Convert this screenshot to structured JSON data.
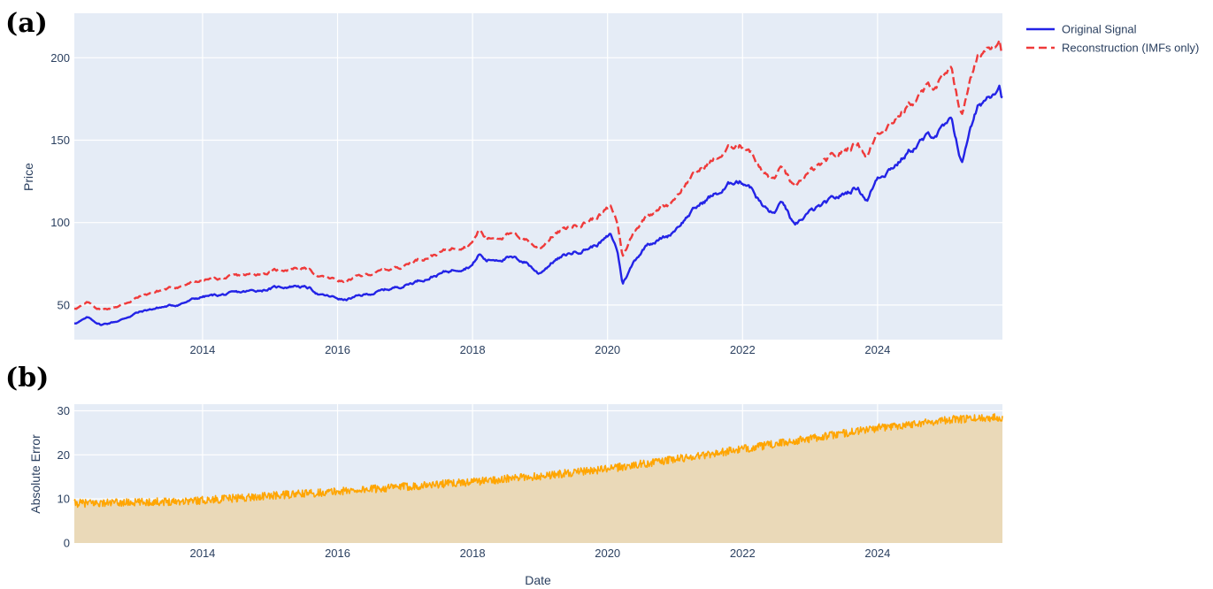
{
  "labels": {
    "a": "(a)",
    "b": "(b)"
  },
  "chart_data": [
    {
      "type": "line",
      "panel": "a",
      "title": "",
      "xlabel": "",
      "ylabel": "Price",
      "xlim": [
        2012.1,
        2025.85
      ],
      "ylim": [
        29,
        227
      ],
      "x_ticks": [
        2014,
        2016,
        2018,
        2020,
        2022,
        2024
      ],
      "y_ticks": [
        50,
        100,
        150,
        200
      ],
      "grid": true,
      "legend_position": "top-right",
      "series": [
        {
          "name": "Original Signal",
          "color": "#2323e6",
          "dash": "solid",
          "x": [
            2012.1,
            2012.3,
            2012.5,
            2012.8,
            2013.0,
            2013.3,
            2013.6,
            2014.0,
            2014.5,
            2015.0,
            2015.4,
            2015.6,
            2015.75,
            2016.0,
            2016.1,
            2016.3,
            2016.6,
            2016.9,
            2017.2,
            2017.6,
            2018.0,
            2018.1,
            2018.2,
            2018.5,
            2018.8,
            2018.98,
            2019.2,
            2019.5,
            2019.8,
            2020.05,
            2020.15,
            2020.22,
            2020.4,
            2020.6,
            2020.9,
            2021.2,
            2021.5,
            2021.7,
            2021.9,
            2022.1,
            2022.3,
            2022.45,
            2022.6,
            2022.78,
            2022.95,
            2023.2,
            2023.5,
            2023.7,
            2023.85,
            2024.0,
            2024.3,
            2024.6,
            2024.9,
            2025.1,
            2025.18,
            2025.25,
            2025.35,
            2025.5,
            2025.7,
            2025.8,
            2025.85
          ],
          "y": [
            39,
            42,
            38,
            41,
            45,
            48,
            50,
            55,
            57,
            60,
            62,
            60,
            56,
            54,
            53,
            55,
            58,
            61,
            65,
            70,
            75,
            81,
            77,
            79,
            76,
            69,
            77,
            82,
            86,
            92,
            82,
            63,
            77,
            88,
            92,
            105,
            115,
            119,
            126,
            124,
            110,
            105,
            112,
            96,
            105,
            110,
            117,
            122,
            114,
            128,
            137,
            148,
            155,
            160,
            148,
            135,
            155,
            170,
            180,
            186,
            178
          ],
          "source_table": true
        },
        {
          "name": "Reconstruction (IMFs only)",
          "color": "#ef3a3a",
          "dash": "dash",
          "x": [
            2012.1,
            2012.3,
            2012.5,
            2012.8,
            2013.0,
            2013.3,
            2013.6,
            2014.0,
            2014.5,
            2015.0,
            2015.4,
            2015.6,
            2015.75,
            2016.0,
            2016.1,
            2016.3,
            2016.6,
            2016.9,
            2017.2,
            2017.6,
            2018.0,
            2018.1,
            2018.2,
            2018.5,
            2018.8,
            2018.98,
            2019.2,
            2019.5,
            2019.8,
            2020.05,
            2020.15,
            2020.22,
            2020.4,
            2020.6,
            2020.9,
            2021.2,
            2021.5,
            2021.7,
            2021.9,
            2022.1,
            2022.3,
            2022.45,
            2022.6,
            2022.78,
            2022.95,
            2023.2,
            2023.5,
            2023.7,
            2023.85,
            2024.0,
            2024.3,
            2024.6,
            2024.9,
            2025.1,
            2025.18,
            2025.25,
            2025.35,
            2025.5,
            2025.7,
            2025.8,
            2025.85
          ],
          "y": [
            48,
            51,
            47,
            50,
            54,
            58,
            61,
            65,
            67,
            70,
            73,
            71,
            67,
            65,
            64,
            67,
            70,
            73,
            78,
            83,
            89,
            96,
            90,
            93,
            90,
            84,
            93,
            98,
            103,
            109,
            99,
            80,
            95,
            106,
            111,
            126,
            136,
            141,
            148,
            146,
            130,
            126,
            133,
            119,
            129,
            135,
            143,
            149,
            141,
            155,
            165,
            177,
            185,
            190,
            177,
            164,
            185,
            200,
            210,
            214,
            206
          ],
          "source_table": true
        }
      ]
    },
    {
      "type": "area",
      "panel": "b",
      "title": "",
      "xlabel": "Date",
      "ylabel": "Absolute Error",
      "xlim": [
        2012.1,
        2025.85
      ],
      "ylim": [
        0,
        31.5
      ],
      "x_ticks": [
        2014,
        2016,
        2018,
        2020,
        2022,
        2024
      ],
      "y_ticks": [
        0,
        10,
        20,
        30
      ],
      "grid": true,
      "series": [
        {
          "name": "",
          "color": "#ffa500",
          "fill_color": "#ead9b8",
          "x": [
            2012.1,
            2013.0,
            2014.0,
            2015.0,
            2016.0,
            2017.0,
            2018.0,
            2019.0,
            2020.0,
            2021.0,
            2022.0,
            2023.0,
            2024.0,
            2025.0,
            2025.85
          ],
          "y": [
            9,
            9.2,
            9.7,
            10.7,
            11.7,
            12.8,
            13.9,
            15.2,
            16.8,
            19.0,
            21.3,
            23.7,
            26.1,
            27.9,
            28.6
          ],
          "noise_amplitude": 0.9,
          "source_table": true
        }
      ]
    }
  ]
}
